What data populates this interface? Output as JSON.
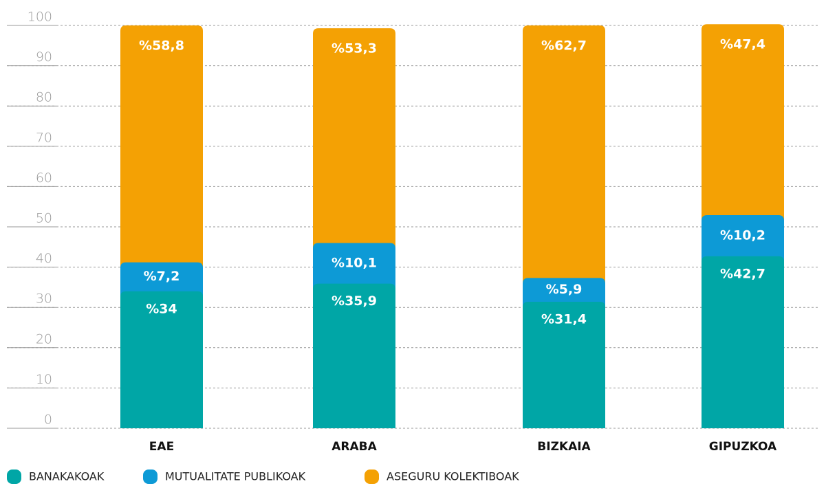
{
  "chart_data": {
    "type": "stacked_bar",
    "categories": [
      "EAE",
      "ARABA",
      "BIZKAIA",
      "GIPUZKOA"
    ],
    "series": [
      {
        "name": "BANAKAKOAK",
        "color": "#00a6a6",
        "values": [
          34,
          35.9,
          31.4,
          42.7
        ],
        "value_labels": [
          "%34",
          "%35,9",
          "%31,4",
          "%42,7"
        ]
      },
      {
        "name": "MUTUALITATE PUBLIKOAK",
        "color": "#0d9ad6",
        "values": [
          7.2,
          10.1,
          5.9,
          10.2
        ],
        "value_labels": [
          "%7,2",
          "%10,1",
          "%5,9",
          "%10,2"
        ]
      },
      {
        "name": "ASEGURU KOLEKTIBOAK",
        "color": "#f4a104",
        "values": [
          58.8,
          53.3,
          62.7,
          47.4
        ],
        "value_labels": [
          "%58,8",
          "%53,3",
          "%62,7",
          "%47,4"
        ]
      }
    ],
    "ylim": [
      0,
      100
    ],
    "yticks": [
      0,
      10,
      20,
      30,
      40,
      50,
      60,
      70,
      80,
      90,
      100
    ],
    "grid": true,
    "legend": "bottom"
  }
}
